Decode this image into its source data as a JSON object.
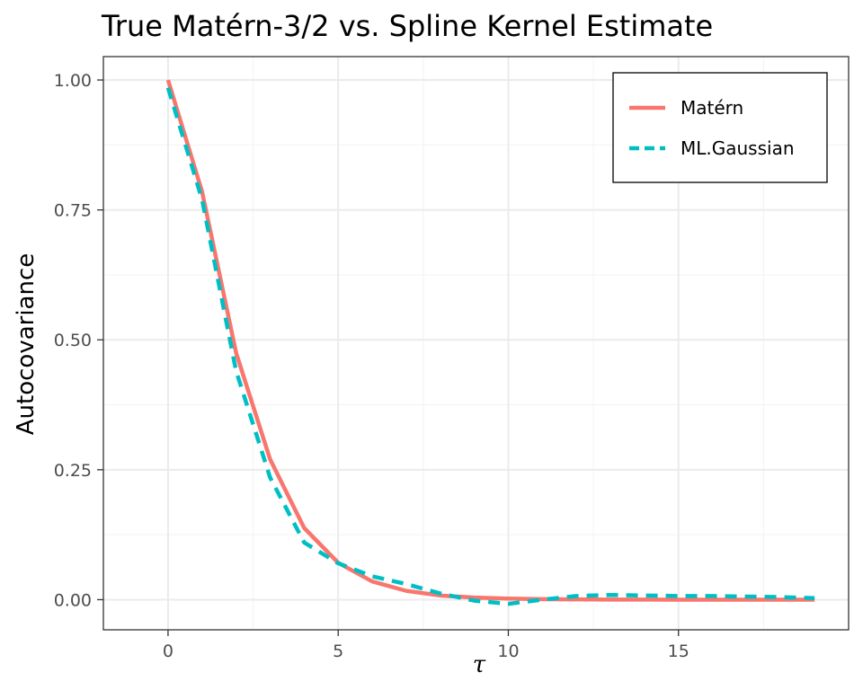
{
  "chart_data": {
    "type": "line",
    "title": "True Matérn-3/2 vs. Spline Kernel Estimate",
    "xlabel": "τ",
    "ylabel": "Autocovariance",
    "xlim": [
      -1.9,
      20
    ],
    "ylim": [
      -0.058,
      1.045
    ],
    "x_ticks": [
      0,
      5,
      10,
      15
    ],
    "x_tick_labels": [
      "0",
      "5",
      "10",
      "15"
    ],
    "y_ticks": [
      0,
      0.25,
      0.5,
      0.75,
      1.0
    ],
    "y_tick_labels": [
      "0.00",
      "0.25",
      "0.50",
      "0.75",
      "1.00"
    ],
    "grid": true,
    "legend_position": "top-right",
    "series": [
      {
        "name": "Matérn",
        "color": "#F8766D",
        "dash": "solid",
        "x": [
          0,
          1,
          2,
          3,
          4,
          5,
          6,
          7,
          8,
          9,
          10,
          11,
          12,
          13,
          14,
          15,
          16,
          17,
          18,
          19
        ],
        "y": [
          1.0,
          0.785,
          0.475,
          0.27,
          0.138,
          0.071,
          0.035,
          0.017,
          0.008,
          0.004,
          0.002,
          0.001,
          0.0005,
          0.0002,
          0.0001,
          0.0,
          0.0,
          0.0,
          0.0,
          0.0
        ]
      },
      {
        "name": "ML.Gaussian",
        "color": "#00BFC4",
        "dash": "dashed",
        "x": [
          0,
          1,
          2,
          3,
          4,
          5,
          6,
          7,
          8,
          9,
          10,
          11,
          12,
          13,
          14,
          15,
          16,
          17,
          18,
          19
        ],
        "y": [
          0.985,
          0.77,
          0.44,
          0.235,
          0.11,
          0.07,
          0.045,
          0.03,
          0.012,
          -0.002,
          -0.008,
          0.0,
          0.007,
          0.009,
          0.008,
          0.007,
          0.007,
          0.006,
          0.005,
          0.003
        ]
      }
    ]
  }
}
